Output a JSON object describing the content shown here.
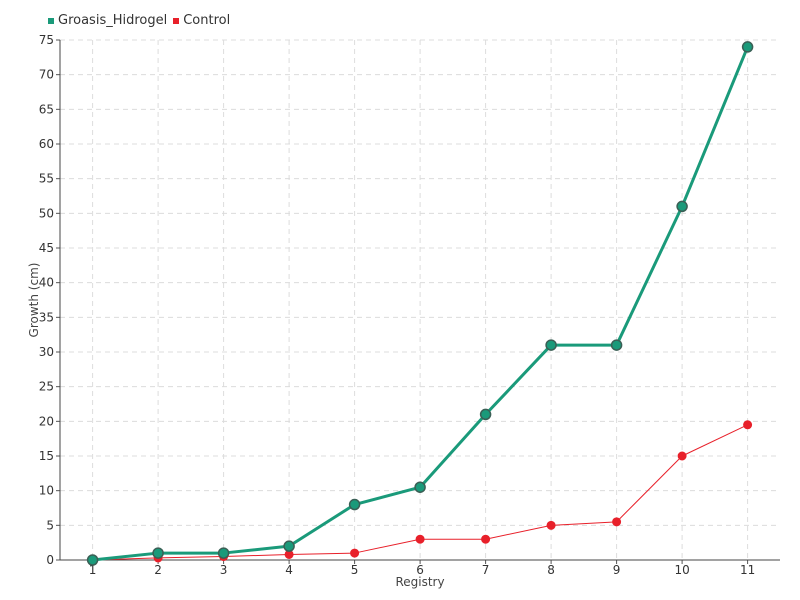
{
  "chart_data": {
    "type": "line",
    "x": [
      1,
      2,
      3,
      4,
      5,
      6,
      7,
      8,
      9,
      10,
      11
    ],
    "series": [
      {
        "name": "Groasis_Hidrogel",
        "color": "#1a9a7a",
        "values": [
          0,
          1,
          1,
          2,
          8,
          10.5,
          21,
          31,
          31,
          51,
          74
        ]
      },
      {
        "name": "Control",
        "color": "#e8202a",
        "values": [
          0,
          0.3,
          0.5,
          0.8,
          1,
          3,
          3,
          5,
          5.5,
          15,
          19.5
        ]
      }
    ],
    "xlabel": "Registry",
    "ylabel": "Growth (cm)",
    "ylim": [
      0,
      75
    ],
    "yticks": [
      0,
      5,
      10,
      15,
      20,
      25,
      30,
      35,
      40,
      45,
      50,
      55,
      60,
      65,
      70,
      75
    ],
    "xticks": [
      "1",
      "2",
      "3",
      "4",
      "5",
      "6",
      "7",
      "8",
      "9",
      "10",
      "11"
    ],
    "grid": true,
    "legend_position": "top-left"
  }
}
